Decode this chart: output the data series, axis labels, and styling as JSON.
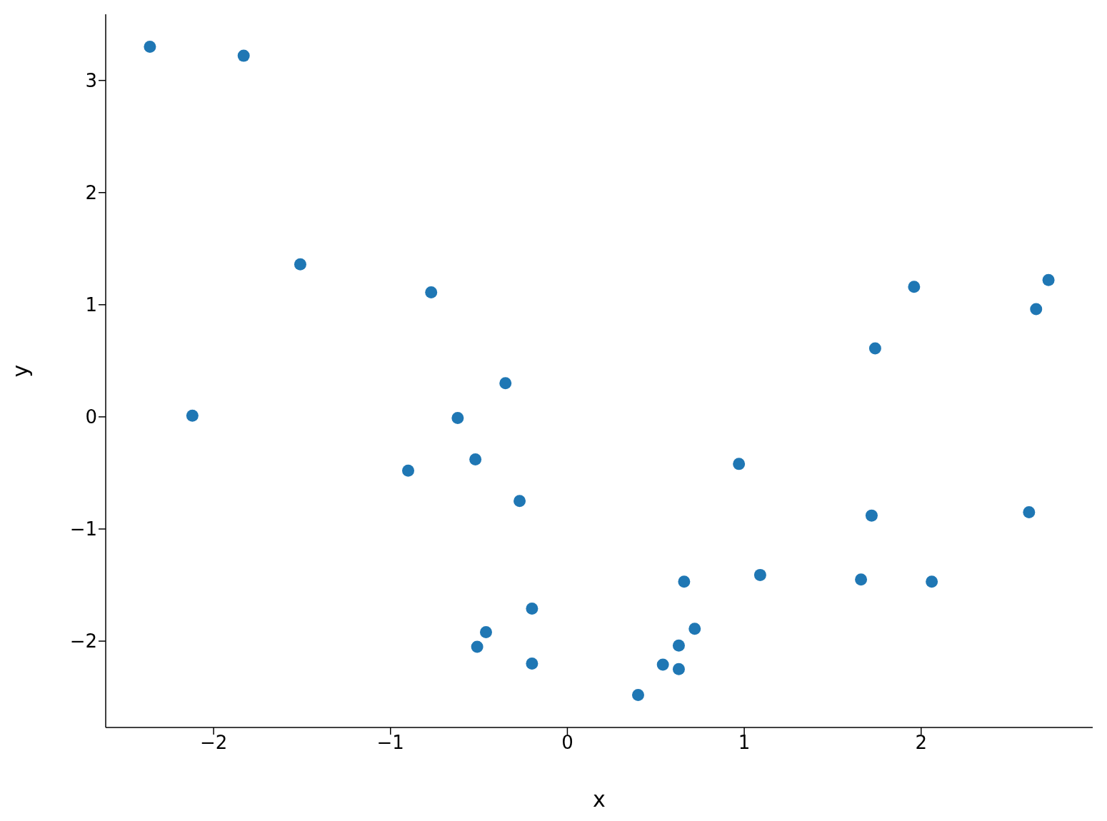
{
  "chart_data": {
    "type": "scatter",
    "xlabel": "x",
    "ylabel": "y",
    "x": [
      -2.36,
      -1.83,
      -1.51,
      -0.77,
      -2.12,
      -0.35,
      -0.62,
      -0.9,
      -0.52,
      -0.27,
      -0.2,
      -0.46,
      -0.51,
      -0.2,
      0.4,
      0.54,
      0.63,
      0.63,
      0.72,
      0.66,
      0.97,
      1.09,
      1.66,
      1.72,
      1.74,
      1.96,
      2.06,
      2.61,
      2.65,
      2.72
    ],
    "series": [
      {
        "color": "#1f77b4",
        "values": [
          3.3,
          3.22,
          1.36,
          1.11,
          0.01,
          0.3,
          -0.01,
          -0.48,
          -0.38,
          -0.75,
          -1.71,
          -1.92,
          -2.05,
          -2.2,
          -2.48,
          -2.21,
          -2.25,
          -2.04,
          -1.89,
          -1.47,
          -0.42,
          -1.41,
          -1.45,
          -0.88,
          0.61,
          1.16,
          -1.47,
          -0.85,
          0.96,
          1.22
        ]
      }
    ],
    "xlim": [
      -2.61,
      2.97
    ],
    "ylim": [
      -2.77,
      3.59
    ],
    "xticks": [
      -2,
      -1,
      0,
      1,
      2
    ],
    "yticks": [
      -2,
      -1,
      0,
      1,
      2,
      3
    ],
    "marker": "circle"
  }
}
